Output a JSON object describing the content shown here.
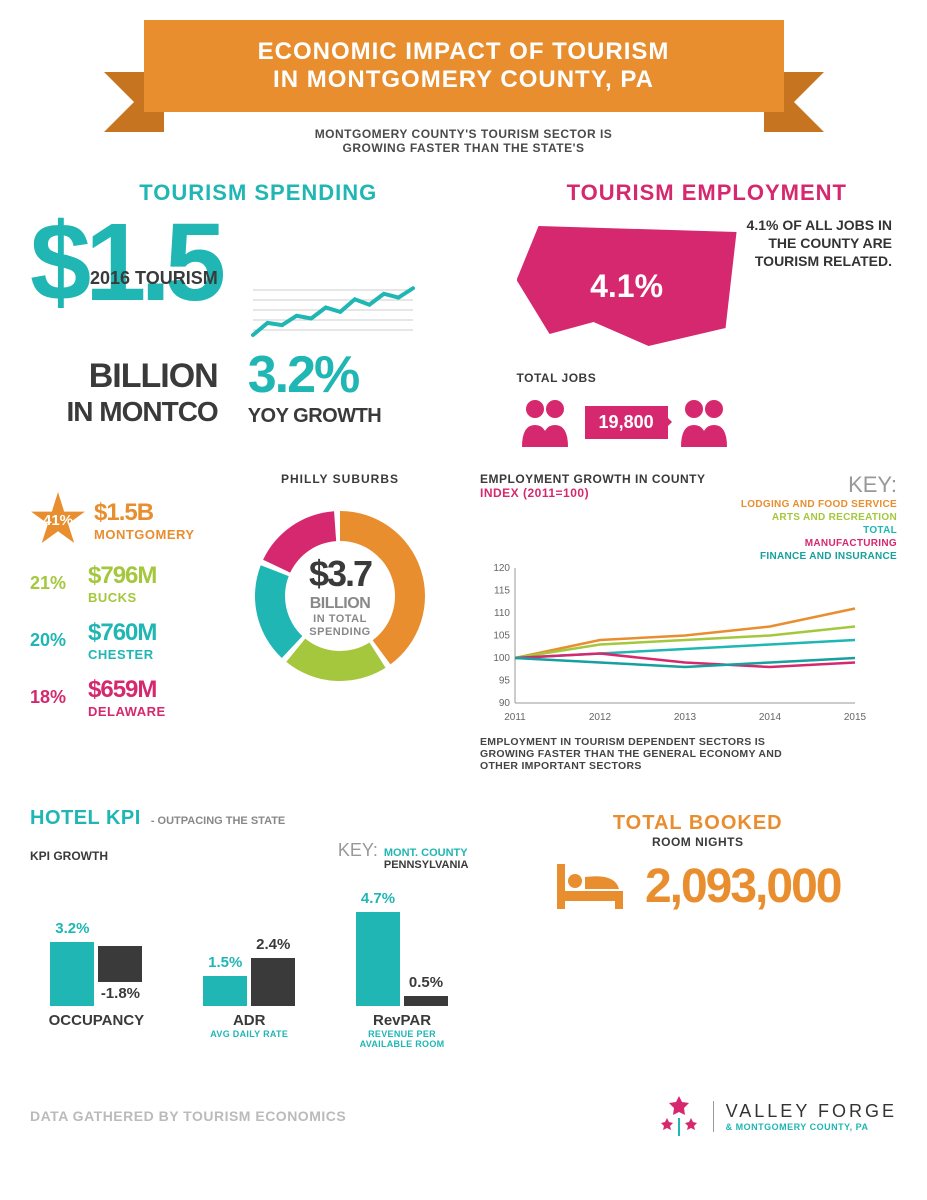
{
  "banner": {
    "line1": "ECONOMIC IMPACT OF TOURISM",
    "line2": "IN MONTGOMERY COUNTY, PA",
    "bg_color": "#e88e2e",
    "shadow_color": "#c77420"
  },
  "subtitle": "MONTGOMERY COUNTY'S TOURISM SECTOR IS\nGROWING FASTER THAN THE STATE'S",
  "spending": {
    "title": "TOURISM SPENDING",
    "year_label": "2016 TOURISM",
    "amount": "$1.5",
    "billion_label": "BILLION",
    "location": "IN MONTCO",
    "growth_pct": "3.2%",
    "growth_label": "YOY GROWTH",
    "sparkline_color": "#1fb6b4",
    "sparkline_points": [
      0,
      22,
      18,
      35,
      30,
      50,
      42,
      65,
      55,
      75,
      68,
      85
    ]
  },
  "philly_suburbs": {
    "label": "PHILLY SUBURBS",
    "total_amount": "$3.7",
    "total_unit": "BILLION",
    "total_sub": "IN TOTAL\nSPENDING",
    "donut_colors": {
      "montgomery": "#e88e2e",
      "bucks": "#a5c73e",
      "chester": "#1fb6b4",
      "delaware": "#d6286f"
    },
    "items": [
      {
        "pct": "41%",
        "pct_val": 41,
        "amt": "$1.5B",
        "name": "MONTGOMERY",
        "color": "#e88e2e",
        "star": true
      },
      {
        "pct": "21%",
        "pct_val": 21,
        "amt": "$796M",
        "name": "BUCKS",
        "color": "#a5c73e"
      },
      {
        "pct": "20%",
        "pct_val": 20,
        "amt": "$760M",
        "name": "CHESTER",
        "color": "#1fb6b4"
      },
      {
        "pct": "18%",
        "pct_val": 18,
        "amt": "$659M",
        "name": "DELAWARE",
        "color": "#d6286f"
      }
    ]
  },
  "employment": {
    "title": "TOURISM EMPLOYMENT",
    "stat_text": "4.1% OF ALL JOBS IN\nTHE COUNTY ARE\nTOURISM RELATED.",
    "map_pct": "4.1%",
    "map_color": "#d6286f",
    "total_jobs_label": "TOTAL JOBS",
    "total_jobs": "19,800",
    "people_color": "#d6286f"
  },
  "emp_growth": {
    "title": "EMPLOYMENT GROWTH IN COUNTY",
    "index_label": "INDEX (2011=100)",
    "key_label": "KEY:",
    "legend": [
      {
        "label": "LODGING AND FOOD SERVICE",
        "color": "#e88e2e"
      },
      {
        "label": "ARTS AND RECREATION",
        "color": "#a5c73e"
      },
      {
        "label": "TOTAL",
        "color": "#1fb6b4"
      },
      {
        "label": "MANUFACTURING",
        "color": "#d6286f"
      },
      {
        "label": "FINANCE AND INSURANCE",
        "color": "#16a09e"
      }
    ],
    "x_labels": [
      "2011",
      "2012",
      "2013",
      "2014",
      "2015"
    ],
    "ylim": [
      90,
      120
    ],
    "ytick_step": 5,
    "series": {
      "lodging": [
        100,
        104,
        105,
        107,
        111
      ],
      "arts": [
        100,
        103,
        104,
        105,
        107
      ],
      "total": [
        100,
        101,
        102,
        103,
        104
      ],
      "mfg": [
        100,
        101,
        99,
        98,
        99
      ],
      "finance": [
        100,
        99,
        98,
        99,
        100
      ]
    },
    "caption": "EMPLOYMENT IN TOURISM DEPENDENT SECTORS IS\nGROWING FASTER THAN THE GENERAL ECONOMY AND\nOTHER IMPORTANT SECTORS"
  },
  "hotel_kpi": {
    "title": "HOTEL KPI",
    "subtitle": "- OUTPACING THE STATE",
    "growth_label": "KPI GROWTH",
    "key_label": "KEY:",
    "key_mont": "MONT. COUNTY",
    "key_pa": "PENNSYLVANIA",
    "mont_color": "#1fb6b4",
    "pa_color": "#3a3a3a",
    "charts": [
      {
        "name": "OCCUPANCY",
        "sub": "",
        "mont": 3.2,
        "mont_lbl": "3.2%",
        "pa": -1.8,
        "pa_lbl": "-1.8%"
      },
      {
        "name": "ADR",
        "sub": "AVG DAILY RATE",
        "mont": 1.5,
        "mont_lbl": "1.5%",
        "pa": 2.4,
        "pa_lbl": "2.4%"
      },
      {
        "name": "RevPAR",
        "sub": "REVENUE PER\nAVAILABLE ROOM",
        "mont": 4.7,
        "mont_lbl": "4.7%",
        "pa": 0.5,
        "pa_lbl": "0.5%"
      }
    ]
  },
  "booked": {
    "title": "TOTAL BOOKED",
    "subtitle": "ROOM NIGHTS",
    "value": "2,093,000",
    "icon_color": "#e88e2e",
    "value_color": "#e88e2e"
  },
  "footer": {
    "source": "DATA GATHERED BY TOURISM ECONOMICS",
    "logo_line1": "VALLEY FORGE",
    "logo_line2": "& MONTGOMERY COUNTY, PA",
    "star_color": "#d6286f"
  }
}
